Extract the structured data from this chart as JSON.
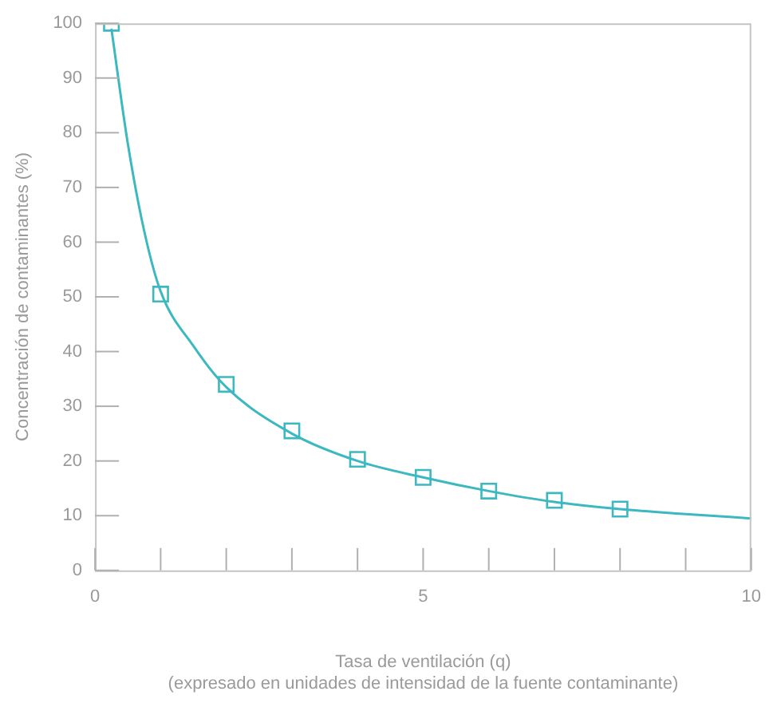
{
  "chart_data": {
    "type": "scatter",
    "xlabel": "Tasa de ventilación (q)\n(expresado en unidades de intensidad de la fuente contaminante)",
    "ylabel": "Concentración de contaminantes (%)",
    "xlim": [
      0,
      10
    ],
    "xticks": [
      0,
      {
        "value": 1,
        "label": null
      },
      {
        "value": 2,
        "label": null
      },
      {
        "value": 3,
        "label": null
      },
      {
        "value": 4,
        "label": null
      },
      5,
      {
        "value": 6,
        "label": null
      },
      {
        "value": 7,
        "label": null
      },
      {
        "value": 8,
        "label": null
      },
      {
        "value": 9,
        "label": null
      },
      10
    ],
    "ylim": [
      0,
      100
    ],
    "yticks": [
      0,
      10,
      20,
      30,
      40,
      50,
      60,
      70,
      80,
      90,
      100
    ],
    "grid": false,
    "legend": false,
    "series": [
      {
        "type": "line",
        "color": "#3cb8c0",
        "marker": "none",
        "line_style": "solid",
        "x": [
          0.25,
          0.5,
          0.75,
          1,
          1.5,
          2,
          3,
          4,
          5,
          6,
          7,
          8,
          9,
          10
        ],
        "values": [
          99,
          78,
          62,
          51,
          41,
          33.5,
          25,
          20,
          17,
          14.5,
          12.5,
          11.2,
          10.3,
          9.5
        ]
      },
      {
        "color": "#3cb8c0",
        "marker": "square",
        "x": [
          0.25,
          1,
          2,
          3,
          4,
          5,
          6,
          7,
          8
        ],
        "values": [
          100,
          50.5,
          34,
          25.5,
          20.3,
          17,
          14.5,
          12.8,
          11.2
        ]
      }
    ]
  }
}
